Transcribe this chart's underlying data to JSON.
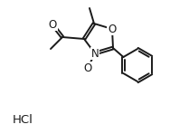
{
  "background_color": "#ffffff",
  "line_color": "#1a1a1a",
  "line_width": 1.4,
  "font_size_atom": 8.5,
  "font_size_hcl": 9.5,
  "figsize": [
    1.88,
    1.48
  ],
  "dpi": 100,
  "xlim": [
    0,
    94
  ],
  "ylim": [
    0,
    74
  ]
}
